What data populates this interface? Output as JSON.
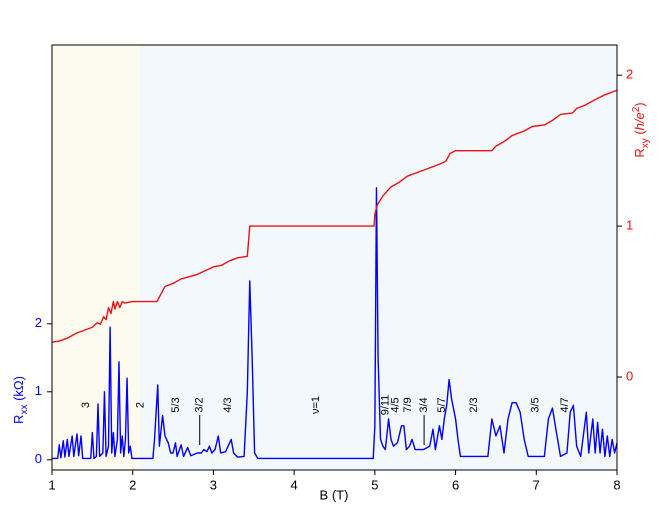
{
  "chart_data": {
    "type": "line",
    "x_label": "B (T)",
    "y_label": [
      {
        "text": "R"
      },
      {
        "text": "xx",
        "style": "sub"
      },
      {
        "text": " (kΩ)"
      }
    ],
    "y2_label": [
      {
        "text": "R"
      },
      {
        "text": "xy",
        "style": "sub"
      },
      {
        "text": " ("
      },
      {
        "text": "h/e",
        "style": "italic"
      },
      {
        "text": "2",
        "style": "sup"
      },
      {
        "text": ")"
      }
    ],
    "xlim": [
      1,
      8
    ],
    "xticks": [
      1,
      2,
      3,
      4,
      5,
      6,
      7,
      8
    ],
    "ylim": [
      -0.15,
      6.1
    ],
    "yticks": [
      0,
      1,
      2
    ],
    "y_color": "#0000ff",
    "y2lim": [
      -0.616,
      2.2
    ],
    "y2ticks": [
      0,
      1,
      2
    ],
    "y2_color": "#ee1111",
    "regions": [
      {
        "xlim": [
          1,
          2.09
        ],
        "color": "#fdfbf0"
      },
      {
        "xlim": [
          2.09,
          8
        ],
        "color": "#f3f8fd"
      }
    ],
    "series": [
      {
        "name": "Rxx",
        "color": "#0000ff",
        "axis": "y",
        "x": [
          1.0,
          1.07,
          1.09,
          1.11,
          1.14,
          1.16,
          1.19,
          1.21,
          1.25,
          1.27,
          1.31,
          1.33,
          1.36,
          1.38,
          1.48,
          1.5,
          1.52,
          1.55,
          1.57,
          1.59,
          1.63,
          1.65,
          1.67,
          1.7,
          1.72,
          1.74,
          1.76,
          1.78,
          1.81,
          1.83,
          1.85,
          1.87,
          1.89,
          1.91,
          1.93,
          1.95,
          1.97,
          1.99,
          2.25,
          2.27,
          2.31,
          2.33,
          2.37,
          2.4,
          2.44,
          2.47,
          2.5,
          2.53,
          2.55,
          2.6,
          2.63,
          2.68,
          2.72,
          2.8,
          2.85,
          2.88,
          2.92,
          2.95,
          2.98,
          3.02,
          3.06,
          3.09,
          3.15,
          3.22,
          3.25,
          3.3,
          3.38,
          3.42,
          3.45,
          3.48,
          3.51,
          3.55,
          4.98,
          5.0,
          5.02,
          5.04,
          5.07,
          5.1,
          5.13,
          5.17,
          5.2,
          5.23,
          5.28,
          5.33,
          5.36,
          5.39,
          5.43,
          5.46,
          5.5,
          5.6,
          5.68,
          5.72,
          5.75,
          5.8,
          5.83,
          5.86,
          5.89,
          5.92,
          5.95,
          6.0,
          6.03,
          6.06,
          6.4,
          6.45,
          6.5,
          6.55,
          6.6,
          6.65,
          6.7,
          6.75,
          6.8,
          6.85,
          6.9,
          7.1,
          7.15,
          7.2,
          7.25,
          7.3,
          7.38,
          7.42,
          7.46,
          7.5,
          7.55,
          7.62,
          7.65,
          7.7,
          7.73,
          7.76,
          7.79,
          7.82,
          7.85,
          7.88,
          7.91,
          7.94,
          7.97,
          8.0
        ],
        "values": [
          0.02,
          0.02,
          0.22,
          0.03,
          0.28,
          0.04,
          0.3,
          0.05,
          0.35,
          0.05,
          0.38,
          0.06,
          0.35,
          0.02,
          0.02,
          0.4,
          0.02,
          0.05,
          0.82,
          0.05,
          0.1,
          1.0,
          0.05,
          0.2,
          1.95,
          0.1,
          0.4,
          0.05,
          0.3,
          1.44,
          0.1,
          0.35,
          0.05,
          0.3,
          1.2,
          0.1,
          0.2,
          0.02,
          0.02,
          0.3,
          1.1,
          0.2,
          0.65,
          0.35,
          0.25,
          0.1,
          0.1,
          0.25,
          0.05,
          0.22,
          0.05,
          0.18,
          0.06,
          0.1,
          0.1,
          0.15,
          0.12,
          0.2,
          0.1,
          0.15,
          0.35,
          0.1,
          0.12,
          0.3,
          0.1,
          0.04,
          0.05,
          1.0,
          2.63,
          1.5,
          0.1,
          0.02,
          0.02,
          0.5,
          4.0,
          1.5,
          0.3,
          0.2,
          0.15,
          0.6,
          0.3,
          0.2,
          0.25,
          0.5,
          0.5,
          0.15,
          0.2,
          0.3,
          0.15,
          0.15,
          0.2,
          0.45,
          0.15,
          0.5,
          0.3,
          0.6,
          0.8,
          1.18,
          0.9,
          0.6,
          0.3,
          0.05,
          0.05,
          0.6,
          0.35,
          0.5,
          0.1,
          0.6,
          0.84,
          0.84,
          0.7,
          0.3,
          0.05,
          0.05,
          0.6,
          0.76,
          0.4,
          0.05,
          0.1,
          0.7,
          0.8,
          0.2,
          0.05,
          0.7,
          0.1,
          0.6,
          0.1,
          0.55,
          0.1,
          0.45,
          0.05,
          0.35,
          0.05,
          0.3,
          0.1,
          0.25
        ]
      },
      {
        "name": "Rxy",
        "color": "#ee1111",
        "axis": "y2",
        "x": [
          1.0,
          1.1,
          1.2,
          1.3,
          1.4,
          1.5,
          1.56,
          1.6,
          1.64,
          1.67,
          1.7,
          1.73,
          1.76,
          1.78,
          1.81,
          1.84,
          1.87,
          1.9,
          2.0,
          2.3,
          2.35,
          2.4,
          2.5,
          2.6,
          2.8,
          3.0,
          3.1,
          3.2,
          3.3,
          3.42,
          3.45,
          4.99,
          5.0,
          5.03,
          5.1,
          5.2,
          5.3,
          5.4,
          5.5,
          5.6,
          5.7,
          5.8,
          5.88,
          5.93,
          6.0,
          6.45,
          6.5,
          6.6,
          6.7,
          6.85,
          6.95,
          7.1,
          7.2,
          7.3,
          7.45,
          7.5,
          7.6,
          7.7,
          7.85,
          8.0
        ],
        "values": [
          0.23,
          0.24,
          0.26,
          0.29,
          0.31,
          0.33,
          0.36,
          0.35,
          0.4,
          0.38,
          0.46,
          0.42,
          0.5,
          0.45,
          0.5,
          0.46,
          0.5,
          0.49,
          0.5,
          0.5,
          0.55,
          0.6,
          0.62,
          0.65,
          0.68,
          0.73,
          0.74,
          0.77,
          0.79,
          0.8,
          1.0,
          1.0,
          1.08,
          1.14,
          1.2,
          1.26,
          1.29,
          1.33,
          1.35,
          1.37,
          1.39,
          1.41,
          1.43,
          1.48,
          1.5,
          1.5,
          1.53,
          1.56,
          1.6,
          1.63,
          1.66,
          1.67,
          1.7,
          1.74,
          1.75,
          1.78,
          1.8,
          1.83,
          1.87,
          1.9
        ]
      }
    ],
    "annotations": [
      {
        "text": "3",
        "x": 1.42
      },
      {
        "text": "2",
        "x": 2.1
      },
      {
        "text": "5/3",
        "x": 2.54
      },
      {
        "text": "3/2",
        "x": 2.83,
        "leader": true
      },
      {
        "text": "4/3",
        "x": 3.18
      },
      {
        "text": "ν=1",
        "x": 4.27
      },
      {
        "text": "9/11",
        "x": 5.13
      },
      {
        "text": "4/5",
        "x": 5.26
      },
      {
        "text": "7/9",
        "x": 5.41
      },
      {
        "text": "3/4",
        "x": 5.61,
        "leader": true
      },
      {
        "text": "5/7",
        "x": 5.83
      },
      {
        "text": "2/3",
        "x": 6.23
      },
      {
        "text": "3/5",
        "x": 6.99
      },
      {
        "text": "4/7",
        "x": 7.36
      }
    ]
  }
}
